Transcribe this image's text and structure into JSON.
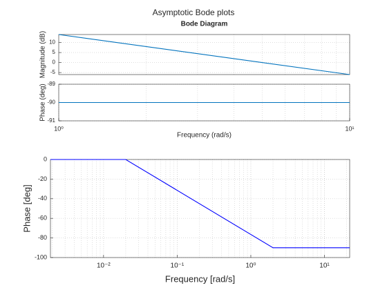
{
  "title": "Asymptotic Bode plots",
  "chart_data": [
    {
      "type": "line",
      "title": "Bode Diagram",
      "ylabel": "Magnitude (dB)",
      "xscale": "log",
      "xlim": [
        1,
        10
      ],
      "ylim": [
        -6,
        14
      ],
      "yticks": [
        -5,
        0,
        5,
        10
      ],
      "grid": true,
      "x": [
        1,
        10
      ],
      "series": [
        {
          "color": "#0072bd",
          "values": [
            14,
            -6
          ]
        }
      ]
    },
    {
      "type": "line",
      "ylabel": "Phase (deg)",
      "xlabel": "Frequency  (rad/s)",
      "xscale": "log",
      "xlim": [
        1,
        10
      ],
      "ylim": [
        -91,
        -89
      ],
      "yticks": [
        -91,
        -90,
        -89
      ],
      "xticks": [
        {
          "value": 1,
          "label": "10⁰"
        },
        {
          "value": 10,
          "label": "10¹"
        }
      ],
      "grid": true,
      "x": [
        1,
        10
      ],
      "series": [
        {
          "color": "#0072bd",
          "values": [
            -90,
            -90
          ]
        }
      ]
    },
    {
      "type": "line",
      "ylabel": "Phase [deg]",
      "xlabel": "Frequency [rad/s]",
      "xscale": "log",
      "xlim": [
        0.0019,
        22
      ],
      "ylim": [
        -100,
        0
      ],
      "yticks": [
        -100,
        -80,
        -60,
        -40,
        -20,
        0
      ],
      "xticks": [
        {
          "value": 0.01,
          "label": "10⁻²"
        },
        {
          "value": 0.1,
          "label": "10⁻¹"
        },
        {
          "value": 1,
          "label": "10⁰"
        },
        {
          "value": 10,
          "label": "10¹"
        }
      ],
      "grid": true,
      "x": [
        0.0019,
        0.02,
        2,
        22
      ],
      "series": [
        {
          "color": "#0000ff",
          "values": [
            0,
            0,
            -90,
            -90
          ]
        }
      ]
    }
  ]
}
